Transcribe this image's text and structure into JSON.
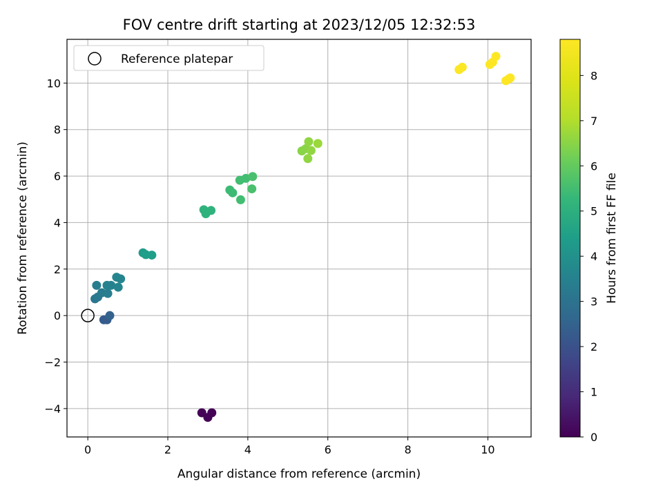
{
  "chart_data": {
    "type": "scatter",
    "title": "FOV centre drift starting at 2023/12/05 12:32:53",
    "xlabel": "Angular distance from reference (arcmin)",
    "ylabel": "Rotation from reference (arcmin)",
    "xlim": [
      -0.52,
      11.08
    ],
    "ylim": [
      -5.22,
      11.88
    ],
    "xticks": [
      0,
      2,
      4,
      6,
      8,
      10
    ],
    "yticks": [
      -4,
      -2,
      0,
      2,
      4,
      6,
      8,
      10
    ],
    "grid": true,
    "legend": {
      "placement": "top-left",
      "entries": [
        "Reference platepar"
      ]
    },
    "reference_point": {
      "x": 0,
      "y": 0
    },
    "colorbar": {
      "label": "Hours from first FF file",
      "range": [
        0,
        8.8
      ],
      "ticks": [
        0,
        1,
        2,
        3,
        4,
        5,
        6,
        7,
        8
      ],
      "colormap": "viridis"
    },
    "points": [
      {
        "x": 2.85,
        "y": -4.18,
        "c": 0.05
      },
      {
        "x": 3.0,
        "y": -4.38,
        "c": 0.05
      },
      {
        "x": 3.1,
        "y": -4.18,
        "c": 0.05
      },
      {
        "x": 0.4,
        "y": -0.18,
        "c": 2.3
      },
      {
        "x": 0.48,
        "y": -0.18,
        "c": 2.3
      },
      {
        "x": 0.55,
        "y": 0.0,
        "c": 2.5
      },
      {
        "x": 0.18,
        "y": 0.72,
        "c": 3.1
      },
      {
        "x": 0.25,
        "y": 0.8,
        "c": 3.2
      },
      {
        "x": 0.35,
        "y": 0.98,
        "c": 3.3
      },
      {
        "x": 0.22,
        "y": 1.3,
        "c": 3.4
      },
      {
        "x": 0.5,
        "y": 0.95,
        "c": 3.4
      },
      {
        "x": 0.48,
        "y": 1.3,
        "c": 3.5
      },
      {
        "x": 0.58,
        "y": 1.3,
        "c": 3.5
      },
      {
        "x": 0.72,
        "y": 1.65,
        "c": 3.6
      },
      {
        "x": 0.82,
        "y": 1.58,
        "c": 3.6
      },
      {
        "x": 0.76,
        "y": 1.22,
        "c": 3.6
      },
      {
        "x": 1.38,
        "y": 2.7,
        "c": 4.3
      },
      {
        "x": 1.45,
        "y": 2.62,
        "c": 4.4
      },
      {
        "x": 1.6,
        "y": 2.6,
        "c": 4.4
      },
      {
        "x": 2.9,
        "y": 4.55,
        "c": 5.1
      },
      {
        "x": 2.95,
        "y": 4.38,
        "c": 5.1
      },
      {
        "x": 3.08,
        "y": 4.52,
        "c": 5.1
      },
      {
        "x": 3.55,
        "y": 5.4,
        "c": 5.4
      },
      {
        "x": 3.62,
        "y": 5.28,
        "c": 5.4
      },
      {
        "x": 3.8,
        "y": 5.82,
        "c": 5.5
      },
      {
        "x": 3.82,
        "y": 4.98,
        "c": 5.5
      },
      {
        "x": 3.95,
        "y": 5.9,
        "c": 5.5
      },
      {
        "x": 4.12,
        "y": 5.98,
        "c": 5.6
      },
      {
        "x": 4.1,
        "y": 5.45,
        "c": 5.6
      },
      {
        "x": 5.35,
        "y": 7.08,
        "c": 6.5
      },
      {
        "x": 5.45,
        "y": 7.18,
        "c": 6.5
      },
      {
        "x": 5.52,
        "y": 7.48,
        "c": 6.6
      },
      {
        "x": 5.58,
        "y": 7.1,
        "c": 6.6
      },
      {
        "x": 5.5,
        "y": 6.75,
        "c": 6.6
      },
      {
        "x": 5.75,
        "y": 7.4,
        "c": 6.7
      },
      {
        "x": 9.28,
        "y": 10.58,
        "c": 8.75
      },
      {
        "x": 9.36,
        "y": 10.68,
        "c": 8.75
      },
      {
        "x": 10.05,
        "y": 10.8,
        "c": 8.8
      },
      {
        "x": 10.12,
        "y": 10.9,
        "c": 8.8
      },
      {
        "x": 10.2,
        "y": 11.15,
        "c": 8.8
      },
      {
        "x": 10.45,
        "y": 10.1,
        "c": 8.8
      },
      {
        "x": 10.52,
        "y": 10.18,
        "c": 8.8
      },
      {
        "x": 10.56,
        "y": 10.22,
        "c": 8.8
      }
    ]
  }
}
